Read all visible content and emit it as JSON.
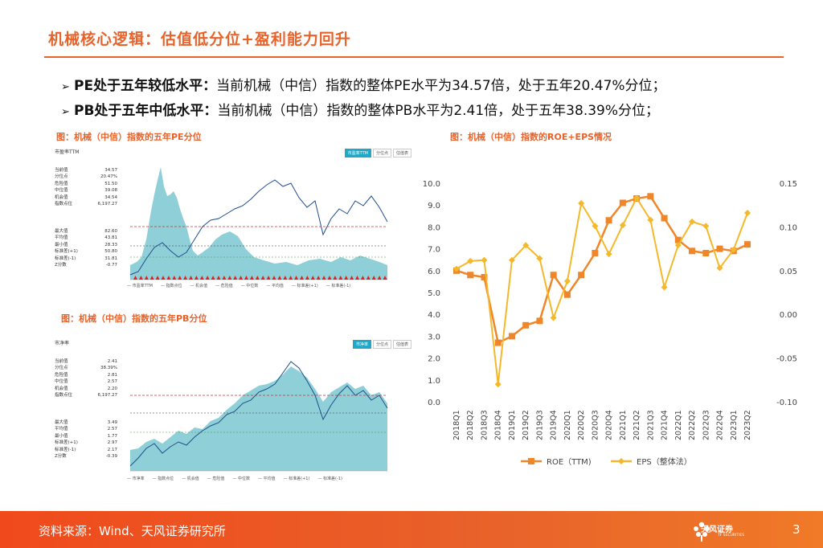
{
  "slide": {
    "title": "机械核心逻辑：估值低分位+盈利能力回升",
    "page_number": "3"
  },
  "bullets": [
    {
      "lead": "PE处于五年较低水平：",
      "body": "当前机械（中信）指数的整体PE水平为34.57倍，处于五年20.47%分位；"
    },
    {
      "lead": "PB处于五年中低水平：",
      "body": "当前机械（中信）指数的整体PB水平为2.41倍，处于五年38.39%分位；"
    }
  ],
  "figures": {
    "pe_caption": "图：机械（中信）指数的五年PE分位",
    "pb_caption": "图：机械（中信）指数的五年PB分位",
    "roe_caption": "图：机械（中信）指数的ROE+EPS情况"
  },
  "pe_panel": {
    "title": "市盈率TTM",
    "buttons": [
      "市盈率TTM",
      "分位点",
      "估值表"
    ],
    "stats": [
      [
        "当前值",
        "34.57"
      ],
      [
        "分位点",
        "20.47%"
      ],
      [
        "危险值",
        "51.50"
      ],
      [
        "中位值",
        "39.08"
      ],
      [
        "机会值",
        "34.54"
      ],
      [
        "指数点位",
        "6,197.27"
      ]
    ],
    "stats2": [
      [
        "最大值",
        "82.60"
      ],
      [
        "平均值",
        "43.81"
      ],
      [
        "最小值",
        "28.33"
      ],
      [
        "标准差(+1)",
        "50.80"
      ],
      [
        "标准差(-1)",
        "31.81"
      ],
      [
        "Z分数",
        "-0.77"
      ]
    ],
    "legend": [
      "市盈率TTM",
      "指数点位",
      "机会值",
      "危险值",
      "中位数",
      "平均值",
      "标准差(+1)",
      "标准差(-1)"
    ]
  },
  "pb_panel": {
    "title": "市净率",
    "buttons": [
      "市净率",
      "分位点",
      "估值表"
    ],
    "stats": [
      [
        "当前值",
        "2.41"
      ],
      [
        "分位点",
        "38.39%"
      ],
      [
        "危险值",
        "2.81"
      ],
      [
        "中位值",
        "2.57"
      ],
      [
        "机会值",
        "2.20"
      ],
      [
        "指数点位",
        "6,197.27"
      ]
    ],
    "stats2": [
      [
        "最大值",
        "3.49"
      ],
      [
        "平均值",
        "2.57"
      ],
      [
        "最小值",
        "1.77"
      ],
      [
        "标准差(+1)",
        "2.97"
      ],
      [
        "标准差(-1)",
        "2.17"
      ],
      [
        "Z分数",
        "-0.39"
      ]
    ],
    "legend": [
      "市净率",
      "指数点位",
      "机会值",
      "危险值",
      "中位数",
      "平均值",
      "标准差(+1)",
      "标准差(-1)"
    ]
  },
  "chart_data": {
    "type": "line",
    "title": "图：机械（中信）指数的ROE+EPS情况",
    "categories": [
      "2018Q1",
      "2018Q2",
      "2018Q3",
      "2018Q4",
      "2019Q1",
      "2019Q2",
      "2019Q3",
      "2019Q4",
      "2020Q1",
      "2020Q2",
      "2020Q3",
      "2020Q4",
      "2021Q1",
      "2021Q2",
      "2021Q3",
      "2021Q4",
      "2022Q1",
      "2022Q2",
      "2022Q3",
      "2022Q4",
      "2023Q1",
      "2023Q2"
    ],
    "series": [
      {
        "name": "ROE（TTM)",
        "axis": "left",
        "color": "#f0862a",
        "marker": "square",
        "values": [
          6.0,
          5.8,
          5.7,
          2.7,
          3.0,
          3.5,
          3.7,
          5.8,
          4.9,
          5.8,
          6.8,
          8.3,
          9.1,
          9.3,
          9.4,
          8.4,
          7.4,
          6.9,
          6.8,
          7.0,
          6.9,
          7.2
        ]
      },
      {
        "name": "EPS（整体法）",
        "axis": "right",
        "color": "#f5b82a",
        "marker": "diamond",
        "values": [
          0.052,
          0.061,
          0.062,
          -0.08,
          0.062,
          0.079,
          0.064,
          -0.004,
          0.038,
          0.127,
          0.101,
          0.069,
          0.102,
          0.133,
          0.108,
          0.031,
          0.079,
          0.106,
          0.101,
          0.053,
          0.074,
          0.116
        ]
      }
    ],
    "ylim_left": [
      0.0,
      10.0
    ],
    "ylim_right": [
      -0.1,
      0.15
    ],
    "yticks_left": [
      "0.0",
      "1.0",
      "2.0",
      "3.0",
      "4.0",
      "5.0",
      "6.0",
      "7.0",
      "8.0",
      "9.0",
      "10.0"
    ],
    "yticks_right": [
      "-0.10",
      "-0.05",
      "0.00",
      "0.05",
      "0.10",
      "0.15"
    ],
    "legend_position": "bottom"
  },
  "footer": {
    "source": "资料来源：Wind、天风证券研究所",
    "brand": "天风证券",
    "brand_sub": "TF SECURITIES"
  },
  "colors": {
    "accent": "#e8622a",
    "teal_area": "#8fd0d8",
    "index_line": "#1f4e8c",
    "danger_line": "#d03030"
  }
}
